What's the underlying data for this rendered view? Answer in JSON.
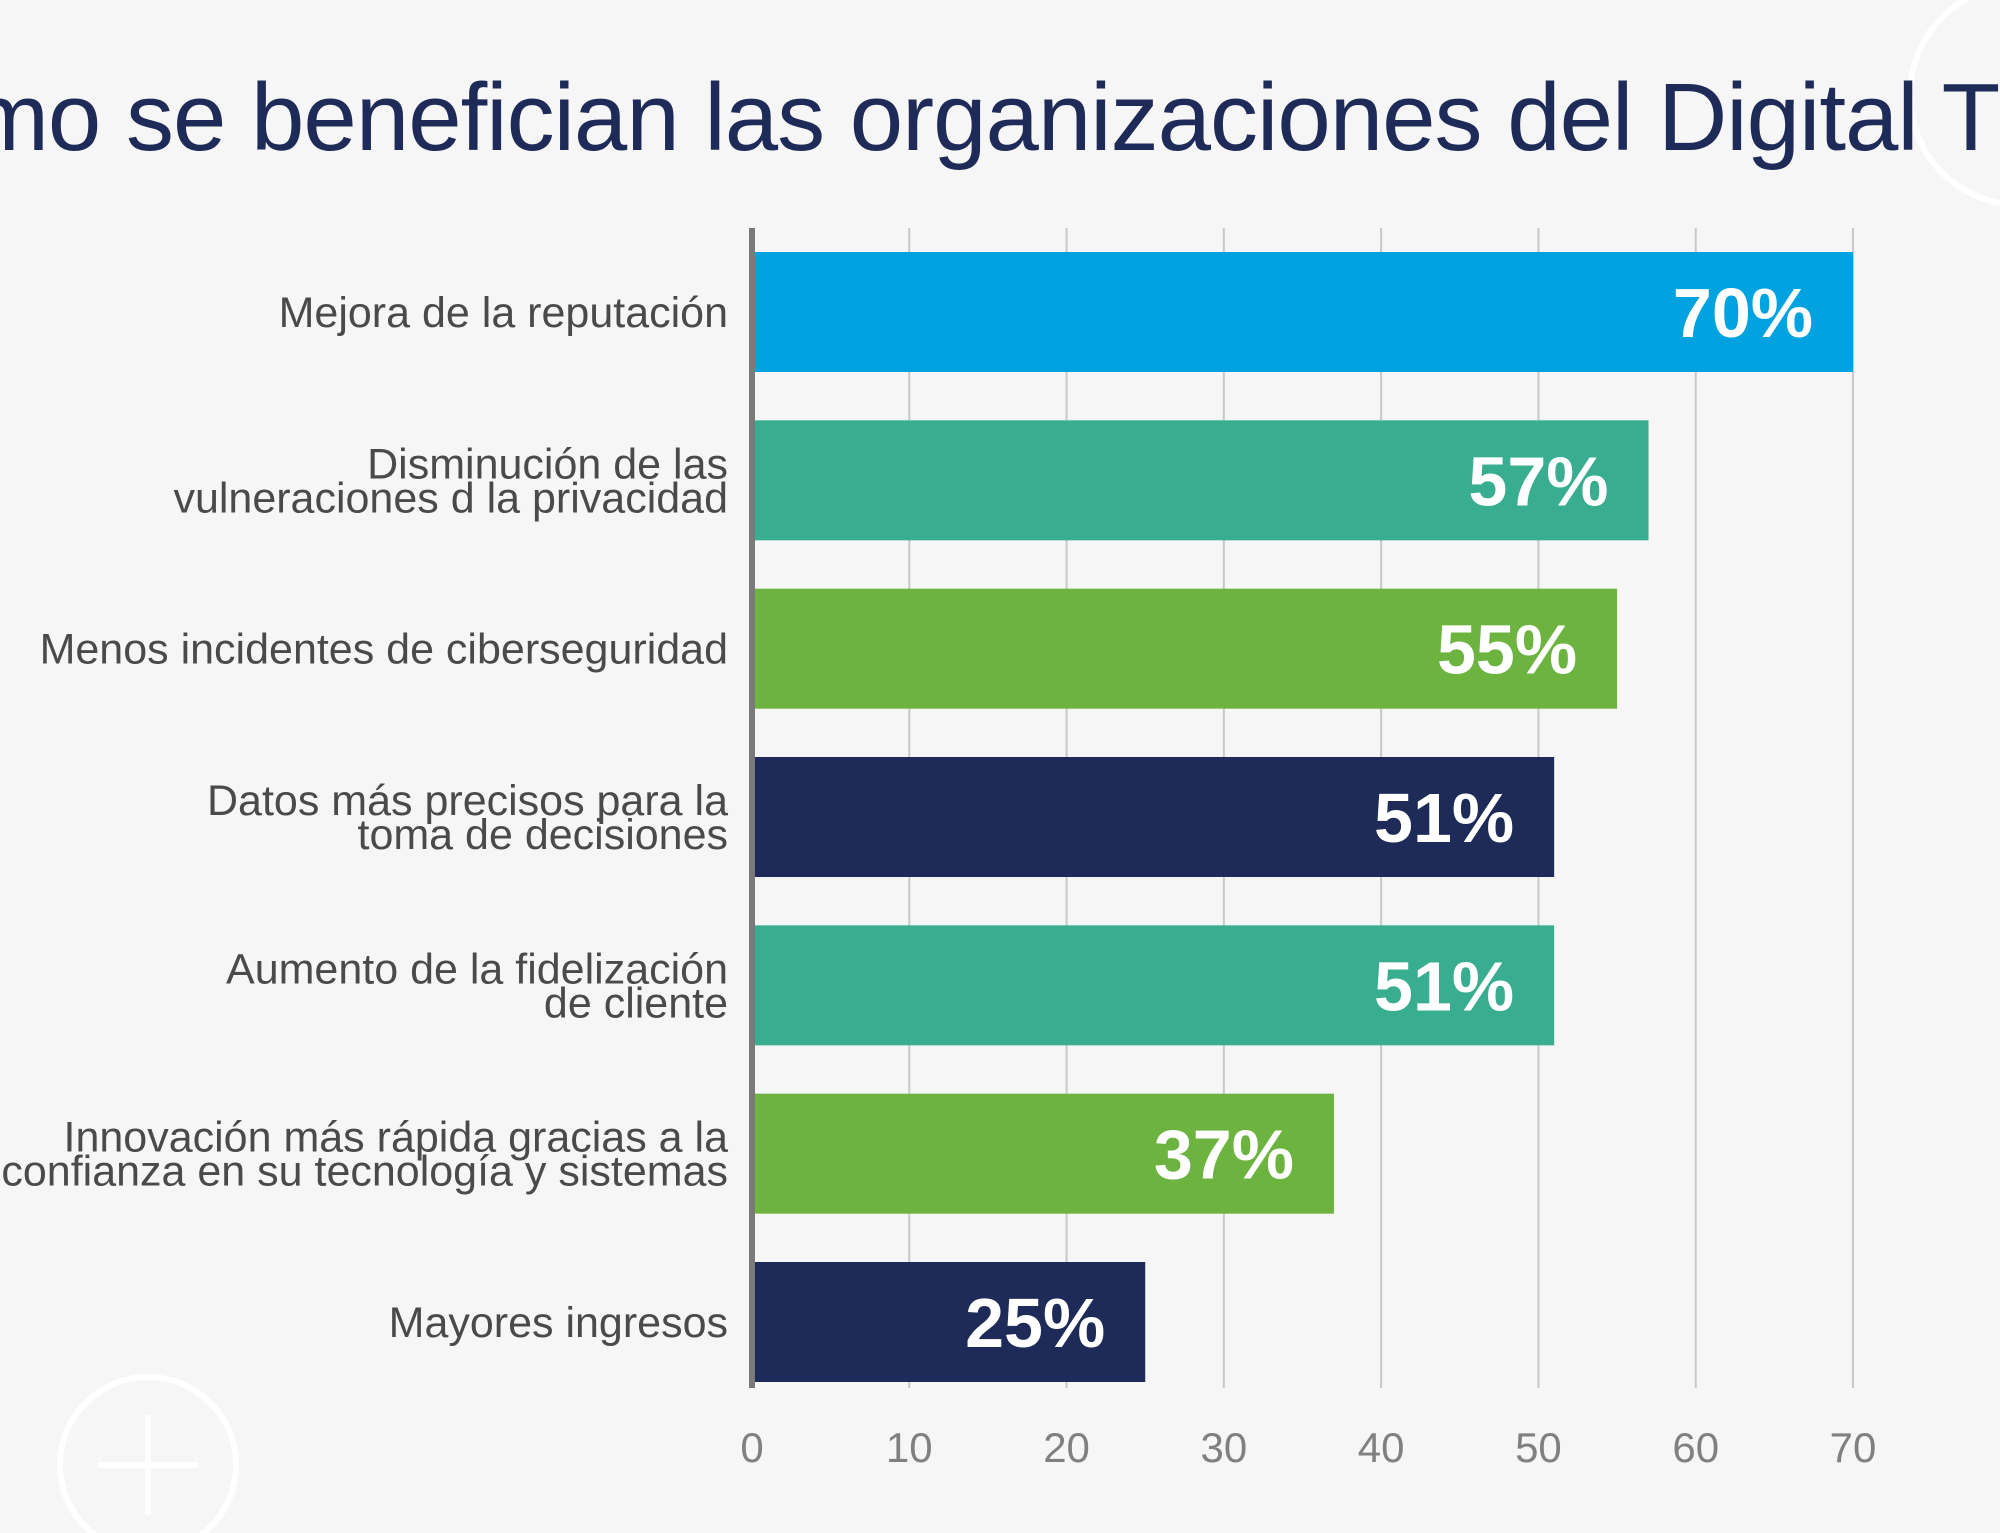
{
  "chart_data": {
    "type": "bar",
    "orientation": "horizontal",
    "title": "Cómo se benefician las organizaciones del Digital Trust",
    "categories": [
      [
        "Mejora de la reputación"
      ],
      [
        "Disminución de las",
        "vulneraciones d la privacidad"
      ],
      [
        "Menos incidentes de ciberseguridad"
      ],
      [
        "Datos más precisos para la",
        "toma de decisiones"
      ],
      [
        "Aumento de la fidelización",
        "de cliente"
      ],
      [
        "Innovación más rápida gracias a la",
        "confianza en su tecnología y sistemas"
      ],
      [
        "Mayores ingresos"
      ]
    ],
    "values": [
      70,
      57,
      55,
      51,
      51,
      37,
      25
    ],
    "value_labels": [
      "70%",
      "57%",
      "55%",
      "51%",
      "51%",
      "37%",
      "25%"
    ],
    "bar_colors": [
      "#00a3e0",
      "#38ad8f",
      "#6db33f",
      "#1e2a57",
      "#38ad8f",
      "#6db33f",
      "#1e2a57"
    ],
    "xlim": [
      0,
      70
    ],
    "xticks": [
      0,
      10,
      20,
      30,
      40,
      50,
      60,
      70
    ],
    "grid": true,
    "xlabel": "",
    "ylabel": ""
  },
  "colors": {
    "title": "#1e2a57",
    "background": "#f6f6f6"
  }
}
